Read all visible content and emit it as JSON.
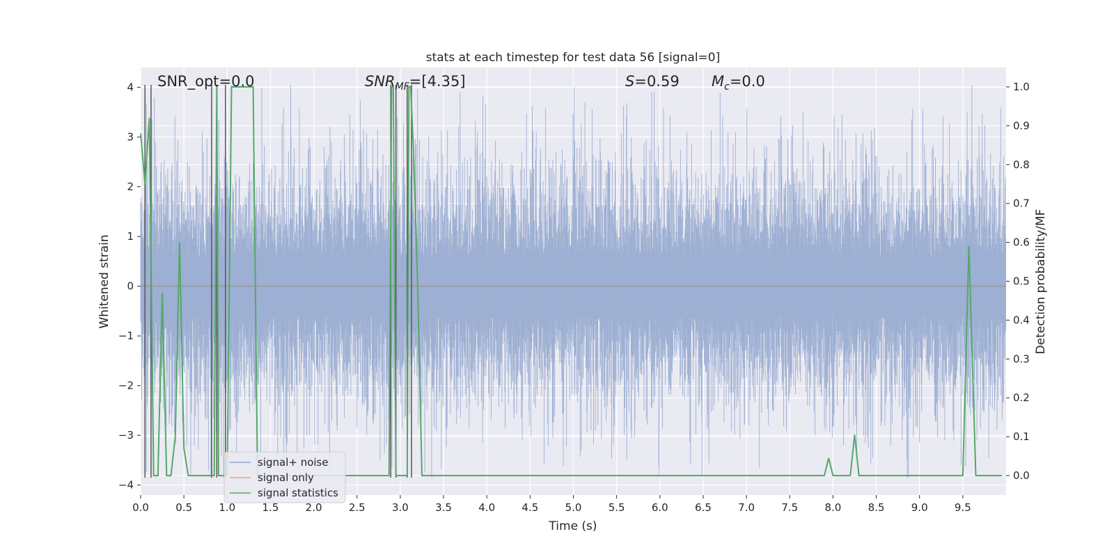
{
  "chart_data": {
    "type": "line",
    "title": "stats at each timestep for test data 56 [signal=0]",
    "xlabel": "Time (s)",
    "ylabel": "Whitened strain",
    "y2label": "Detection probability/MF",
    "xlim": [
      0.0,
      10.0
    ],
    "ylim": [
      -4.2,
      4.4
    ],
    "y2lim": [
      -0.05,
      1.05
    ],
    "xticks": [
      "0.0",
      "0.5",
      "1.0",
      "1.5",
      "2.0",
      "2.5",
      "3.0",
      "3.5",
      "4.0",
      "4.5",
      "5.0",
      "5.5",
      "6.0",
      "6.5",
      "7.0",
      "7.5",
      "8.0",
      "8.5",
      "9.0",
      "9.5"
    ],
    "xtick_values": [
      0.0,
      0.5,
      1.0,
      1.5,
      2.0,
      2.5,
      3.0,
      3.5,
      4.0,
      4.5,
      5.0,
      5.5,
      6.0,
      6.5,
      7.0,
      7.5,
      8.0,
      8.5,
      9.0,
      9.5
    ],
    "yticks": [
      "4",
      "3",
      "2",
      "1",
      "0",
      "−1",
      "−2",
      "−3",
      "−4"
    ],
    "ytick_values": [
      4,
      3,
      2,
      1,
      0,
      -1,
      -2,
      -3,
      -4
    ],
    "y2ticks": [
      "1.0",
      "0.9",
      "0.8",
      "0.7",
      "0.6",
      "0.5",
      "0.4",
      "0.3",
      "0.2",
      "0.1",
      "0.0"
    ],
    "y2tick_values": [
      1.0,
      0.9,
      0.8,
      0.7,
      0.6,
      0.5,
      0.4,
      0.3,
      0.2,
      0.1,
      0.0
    ],
    "grid": true,
    "legend_position": "lower-left",
    "annotations": {
      "snr_opt": "SNR_opt=0.0",
      "snr_mf_main": "SNR",
      "snr_mf_sub": "MF",
      "snr_mf_value": "=[4.35]",
      "s_symbol": "S",
      "s_value": "=0.59",
      "mc_symbol": "M",
      "mc_sub": "c",
      "mc_value": "=0.0"
    },
    "series": [
      {
        "name": "signal+ noise",
        "axis": "left",
        "color": "#8fa4cc",
        "description_kind": "whitened noise, amplitude ~N(0,1), range about -4 to 4"
      },
      {
        "name": "signal only",
        "axis": "left",
        "color": "#e8a37f",
        "x": [
          0.0,
          10.0
        ],
        "y": [
          0.0,
          0.0
        ]
      },
      {
        "name": "signal statistics",
        "axis": "right",
        "color": "#55a868",
        "x": [
          0.0,
          0.05,
          0.1,
          0.15,
          0.2,
          0.25,
          0.3,
          0.35,
          0.4,
          0.45,
          0.5,
          0.55,
          0.6,
          0.65,
          0.7,
          0.75,
          0.8,
          0.85,
          0.88,
          0.9,
          0.95,
          1.0,
          1.05,
          1.1,
          1.15,
          1.2,
          1.25,
          1.3,
          1.35,
          1.4,
          1.5,
          1.6,
          1.7,
          1.8,
          1.9,
          2.0,
          2.1,
          2.2,
          2.3,
          2.4,
          2.5,
          2.6,
          2.7,
          2.8,
          2.87,
          2.9,
          2.92,
          2.95,
          3.0,
          3.05,
          3.08,
          3.1,
          3.12,
          3.15,
          3.2,
          3.25,
          3.3,
          3.5,
          4.0,
          5.0,
          6.0,
          7.0,
          7.5,
          7.8,
          7.9,
          7.95,
          8.0,
          8.1,
          8.2,
          8.25,
          8.3,
          8.4,
          8.6,
          9.0,
          9.3,
          9.5,
          9.57,
          9.65,
          9.8,
          9.95
        ],
        "y": [
          0.88,
          0.75,
          0.92,
          0.0,
          0.0,
          0.47,
          0.0,
          0.0,
          0.1,
          0.6,
          0.07,
          0.0,
          0.0,
          0.0,
          0.0,
          0.0,
          0.0,
          0.0,
          1.0,
          0.0,
          0.0,
          0.0,
          1.0,
          1.0,
          1.0,
          1.0,
          1.0,
          1.0,
          0.0,
          0.0,
          0.0,
          0.0,
          0.0,
          0.0,
          0.0,
          0.0,
          0.0,
          0.0,
          0.0,
          0.0,
          0.0,
          0.0,
          0.0,
          0.0,
          0.0,
          1.0,
          1.0,
          0.0,
          0.0,
          0.0,
          0.0,
          1.0,
          1.0,
          0.85,
          0.5,
          0.0,
          0.0,
          0.0,
          0.0,
          0.0,
          0.0,
          0.0,
          0.0,
          0.0,
          0.0,
          0.045,
          0.0,
          0.0,
          0.0,
          0.105,
          0.0,
          0.0,
          0.0,
          0.0,
          0.0,
          0.0,
          0.59,
          0.0,
          0.0,
          0.0
        ]
      },
      {
        "name": "",
        "axis": "left",
        "color": "#555555",
        "kind": "vlines",
        "x": [
          0.05,
          0.12,
          0.82,
          0.88,
          0.98,
          2.89,
          2.95,
          3.08,
          3.13
        ],
        "ymin": -3.85,
        "ymax": 4.05
      }
    ]
  }
}
